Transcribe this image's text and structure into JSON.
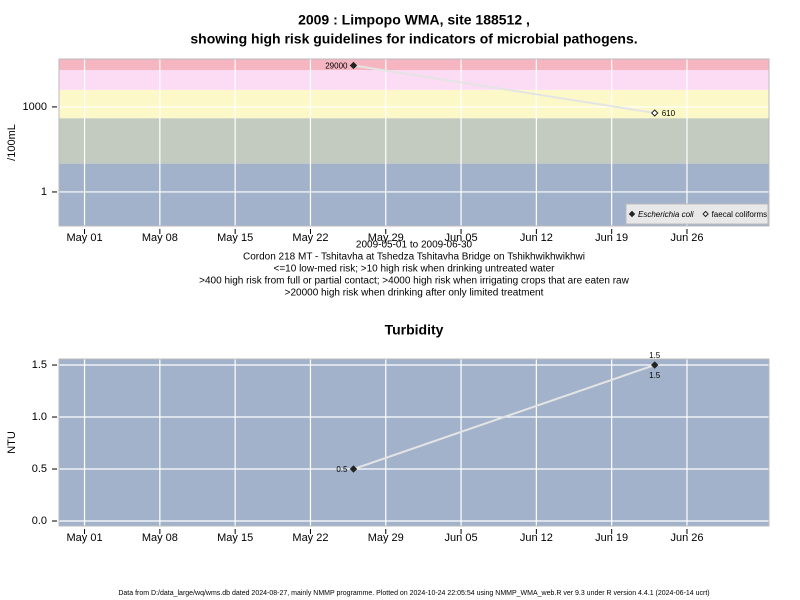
{
  "chart_data": [
    {
      "type": "line",
      "log_y": true,
      "title": [
        "2009 : Limpopo WMA, site 188512 ,",
        "showing high risk guidelines for indicators of microbial pathogens."
      ],
      "ylabel": "/100mL",
      "notes": [
        "2009-05-01 to 2009-06-30",
        "Cordon 218 MT - Tshitavha at Tshedza Tshitavha Bridge on Tshikhwikhwikhwi",
        "<=10 low-med risk; >10 high risk when drinking untreated water",
        ">400 high risk from full or partial contact; >4000 high risk when irrigating crops that are eaten raw",
        ">20000 high risk when drinking after only limited treatment"
      ],
      "x": [
        "2009-05-26",
        "2009-06-23"
      ],
      "series": [
        {
          "name": "Escherichia coli",
          "color": "#222222",
          "values": [
            29000,
            null
          ]
        },
        {
          "name": "faecal coliforms",
          "color": "#ffffff",
          "values": [
            null,
            610
          ]
        }
      ],
      "bands": [
        {
          "from": 0.063,
          "to": 10,
          "color": "#a3b2cb"
        },
        {
          "from": 10,
          "to": 400,
          "color": "#c3cbc0"
        },
        {
          "from": 400,
          "to": 4000,
          "color": "#fdf8c8"
        },
        {
          "from": 4000,
          "to": 20000,
          "color": "#fcdcf4"
        },
        {
          "from": 20000,
          "to": 49000,
          "color": "#f6b6c1"
        }
      ],
      "line_color": "#e4e4e4",
      "xlim": [
        "2009-04-28T15:00",
        "2009-07-03T15:00"
      ],
      "xticks": [
        {
          "value": "2009-05-01",
          "label": "May 01"
        },
        {
          "value": "2009-05-08",
          "label": "May 08"
        },
        {
          "value": "2009-05-15",
          "label": "May 15"
        },
        {
          "value": "2009-05-22",
          "label": "May 22"
        },
        {
          "value": "2009-05-29",
          "label": "May 29"
        },
        {
          "value": "2009-06-05",
          "label": "Jun 05"
        },
        {
          "value": "2009-06-12",
          "label": "Jun 12"
        },
        {
          "value": "2009-06-19",
          "label": "Jun 19"
        },
        {
          "value": "2009-06-26",
          "label": "Jun 26"
        }
      ],
      "ylim": [
        0.063,
        49000
      ],
      "yticks": [
        1,
        1000
      ],
      "grid": true,
      "legend": "lower right"
    },
    {
      "type": "line",
      "title": [
        "Turbidity"
      ],
      "ylabel": "NTU",
      "x": [
        "2009-05-26",
        "2009-06-23"
      ],
      "series": [
        {
          "name": "Turbidity",
          "color": "#222222",
          "values": [
            0.5,
            1.5
          ]
        }
      ],
      "background": "#a3b2cb",
      "line_color": "#e4e4e4",
      "xlim": [
        "2009-04-28T15:00",
        "2009-07-03T15:00"
      ],
      "xticks": [
        {
          "value": "2009-05-01",
          "label": "May 01"
        },
        {
          "value": "2009-05-08",
          "label": "May 08"
        },
        {
          "value": "2009-05-15",
          "label": "May 15"
        },
        {
          "value": "2009-05-22",
          "label": "May 22"
        },
        {
          "value": "2009-05-29",
          "label": "May 29"
        },
        {
          "value": "2009-06-05",
          "label": "Jun 05"
        },
        {
          "value": "2009-06-12",
          "label": "Jun 12"
        },
        {
          "value": "2009-06-19",
          "label": "Jun 19"
        },
        {
          "value": "2009-06-26",
          "label": "Jun 26"
        }
      ],
      "ylim": [
        -0.048,
        1.558
      ],
      "yticks": [
        {
          "value": 0,
          "label": "0.0"
        },
        0.5,
        {
          "value": 1,
          "label": "1.0"
        },
        1.5
      ],
      "grid": true
    }
  ],
  "footer": "Data from D:/data_large/wq/wms.db dated 2024-08-27, mainly NMMP programme. Plotted on 2024-10-24 22:05:54 using NMMP_WMA_web.R ver 9.3 under R version 4.4.1 (2024-06-14 ucrt)"
}
